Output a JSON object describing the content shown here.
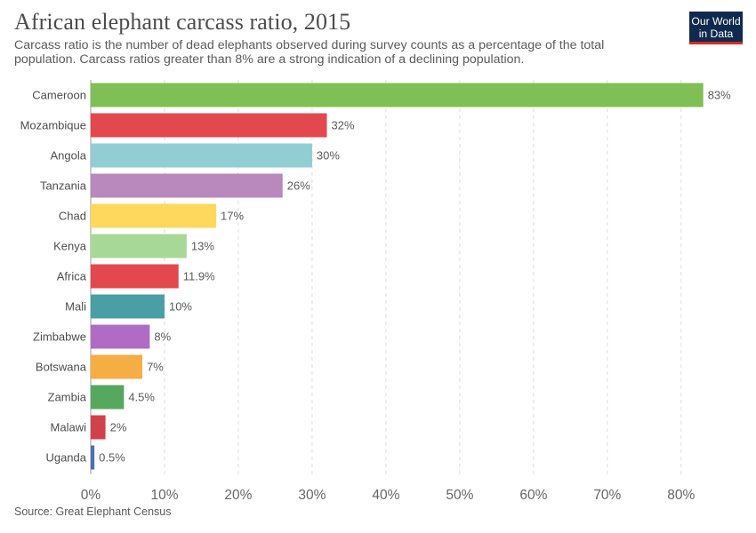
{
  "header": {
    "title": "African elephant carcass ratio, 2015",
    "subtitle": "Carcass ratio is the number of dead elephants observed during survey counts as a percentage of the total population. Carcass ratios greater than 8% are a strong indication of a declining population.",
    "logo_line1": "Our World",
    "logo_line2": "in Data",
    "logo_colors": {
      "background": "#0f2a4e",
      "accent": "#d42b21"
    }
  },
  "footer": {
    "source": "Source: Great Elephant Census"
  },
  "chart_data": {
    "type": "bar",
    "orientation": "horizontal",
    "categories": [
      "Cameroon",
      "Mozambique",
      "Angola",
      "Tanzania",
      "Chad",
      "Kenya",
      "Africa",
      "Mali",
      "Zimbabwe",
      "Botswana",
      "Zambia",
      "Malawi",
      "Uganda"
    ],
    "values": [
      83,
      32,
      30,
      26,
      17,
      13,
      11.9,
      10,
      8,
      7,
      4.5,
      2,
      0.5
    ],
    "value_labels": [
      "83%",
      "32%",
      "30%",
      "26%",
      "17%",
      "13%",
      "11.9%",
      "10%",
      "8%",
      "7%",
      "4.5%",
      "2%",
      "0.5%"
    ],
    "colors": [
      "#80bf55",
      "#e2484e",
      "#92cdd4",
      "#b988bd",
      "#fdd85c",
      "#a8d896",
      "#e2484e",
      "#4a9fa6",
      "#b06cc5",
      "#f5ae44",
      "#56a85f",
      "#d2414b",
      "#4c6eb3"
    ],
    "xticks": [
      0,
      10,
      20,
      30,
      40,
      50,
      60,
      70,
      80
    ],
    "xtick_labels": [
      "0%",
      "10%",
      "20%",
      "30%",
      "40%",
      "50%",
      "60%",
      "70%",
      "80%"
    ],
    "xlim": [
      0,
      84
    ],
    "grid": true,
    "xlabel": "",
    "ylabel": ""
  }
}
